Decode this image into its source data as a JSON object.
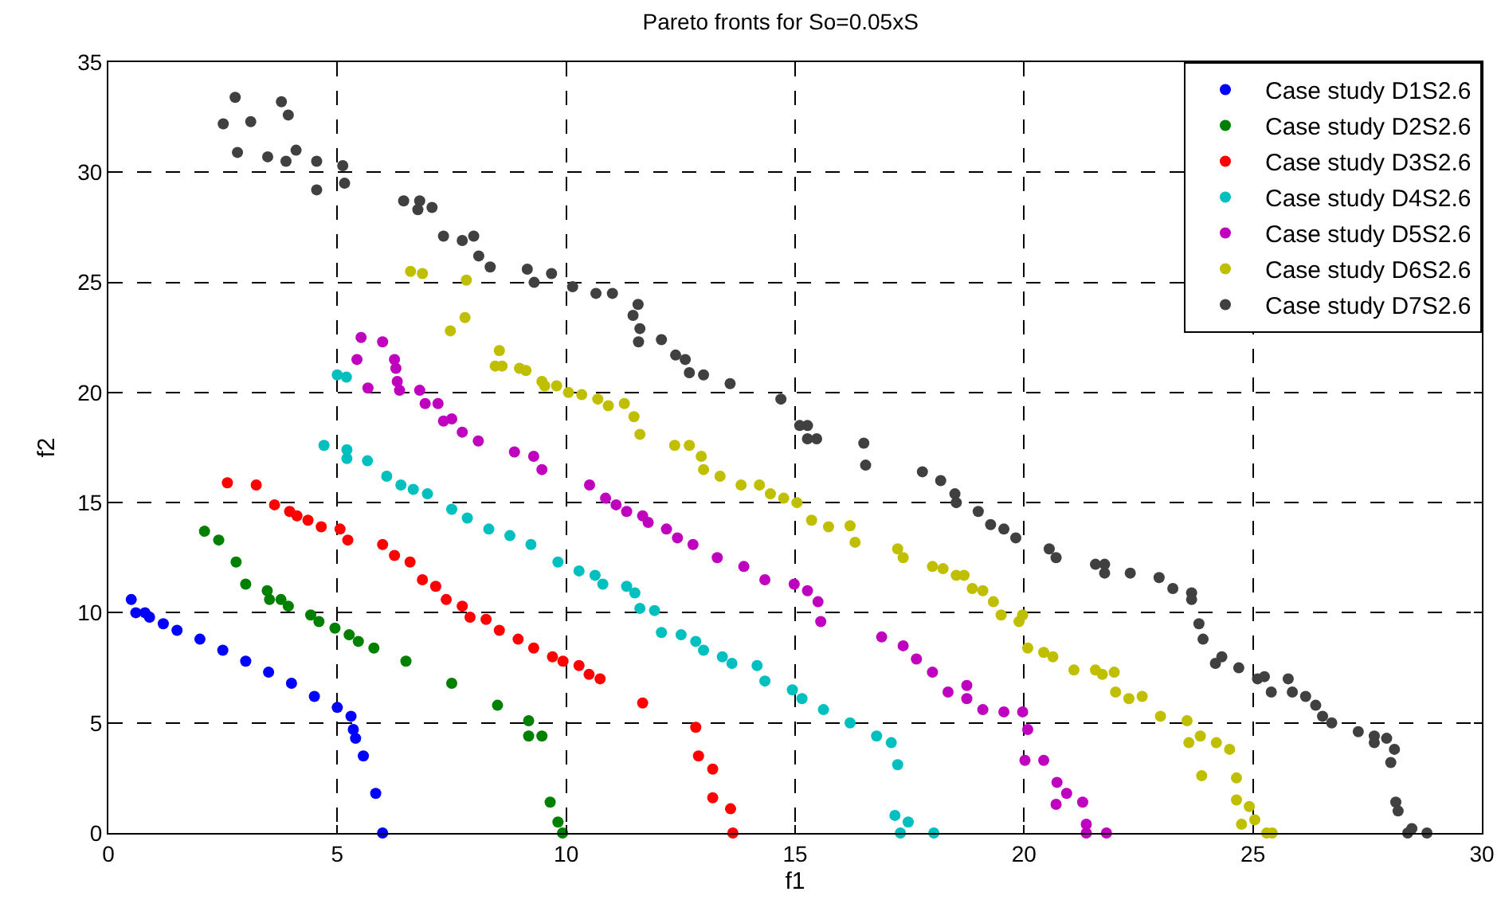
{
  "chart_data": {
    "type": "scatter",
    "title": "Pareto fronts for So=0.05xS",
    "xlabel": "f1",
    "ylabel": "f2",
    "xlim": [
      0,
      30
    ],
    "xticks": [
      0,
      5,
      10,
      15,
      20,
      25,
      30
    ],
    "ylim": [
      0,
      35
    ],
    "yticks": [
      0,
      5,
      10,
      15,
      20,
      25,
      30,
      35
    ],
    "grid": true,
    "legend": "top right",
    "marker": "circle",
    "series": [
      {
        "name": "Case study D1S2.6",
        "color": "#0000ff",
        "x": [
          0.5,
          0.6,
          0.8,
          0.9,
          1.2,
          1.5,
          2,
          2.5,
          3,
          3.5,
          4,
          4.5,
          5,
          5.3,
          5.35,
          5.4,
          5.57,
          5.84,
          5.99
        ],
        "values": [
          10.6,
          10.0,
          10.0,
          9.8,
          9.5,
          9.2,
          8.8,
          8.3,
          7.8,
          7.3,
          6.8,
          6.2,
          5.7,
          5.3,
          4.7,
          4.3,
          3.5,
          1.8,
          0
        ]
      },
      {
        "name": "Case study D2S2.6",
        "color": "#008000",
        "x": [
          2.1,
          2.41,
          2.79,
          3.0,
          3.47,
          3.52,
          3.77,
          3.93,
          4.42,
          4.6,
          4.95,
          5.26,
          5.46,
          5.8,
          6.5,
          7.5,
          8.5,
          9.18,
          9.18,
          9.47,
          9.65,
          9.82,
          9.92
        ],
        "values": [
          13.7,
          13.3,
          12.3,
          11.3,
          11.0,
          10.6,
          10.6,
          10.3,
          9.9,
          9.6,
          9.3,
          9.0,
          8.7,
          8.4,
          7.8,
          6.8,
          5.8,
          5.1,
          4.4,
          4.4,
          1.4,
          0.5,
          0
        ]
      },
      {
        "name": "Case study D3S2.6",
        "color": "#ff0000",
        "x": [
          2.6,
          3.23,
          3.63,
          3.96,
          4.12,
          4.36,
          4.65,
          5.06,
          5.23,
          5.99,
          6.25,
          6.59,
          6.86,
          7.15,
          7.38,
          7.73,
          7.9,
          8.25,
          8.54,
          8.95,
          9.29,
          9.7,
          9.93,
          10.28,
          10.5,
          10.74,
          11.67,
          12.83,
          12.89,
          13.2,
          13.2,
          13.59,
          13.64
        ],
        "values": [
          15.9,
          15.8,
          14.9,
          14.6,
          14.4,
          14.2,
          13.9,
          13.8,
          13.3,
          13.1,
          12.6,
          12.3,
          11.5,
          11.2,
          10.6,
          10.3,
          9.8,
          9.7,
          9.2,
          8.8,
          8.4,
          8.0,
          7.8,
          7.6,
          7.2,
          7.0,
          5.9,
          4.8,
          3.5,
          2.9,
          1.6,
          1.1,
          0
        ]
      },
      {
        "name": "Case study D4S2.6",
        "color": "#00bfbf",
        "x": [
          5.0,
          5.2,
          4.71,
          5.21,
          5.21,
          5.66,
          6.08,
          6.39,
          6.66,
          6.97,
          7.5,
          7.84,
          8.31,
          8.77,
          9.23,
          9.82,
          10.28,
          10.63,
          10.8,
          11.32,
          11.5,
          11.61,
          11.93,
          12.08,
          12.51,
          12.83,
          13.0,
          13.41,
          13.62,
          14.17,
          14.34,
          14.94,
          15.15,
          15.62,
          16.2,
          16.78,
          17.1,
          17.24,
          17.18,
          17.47,
          17.3,
          18.03
        ],
        "values": [
          20.8,
          20.7,
          17.6,
          17.4,
          17.0,
          16.9,
          16.2,
          15.8,
          15.6,
          15.4,
          14.7,
          14.3,
          13.8,
          13.5,
          13.1,
          12.3,
          11.9,
          11.7,
          11.3,
          11.2,
          10.9,
          10.2,
          10.1,
          9.1,
          9.0,
          8.7,
          8.3,
          8.0,
          7.7,
          7.6,
          6.9,
          6.5,
          6.1,
          5.6,
          5.0,
          4.4,
          4.1,
          3.1,
          0.8,
          0.5,
          0,
          0
        ]
      },
      {
        "name": "Case study D5S2.6",
        "color": "#bf00bf",
        "x": [
          5.52,
          5.99,
          5.43,
          6.25,
          6.28,
          5.67,
          6.31,
          6.36,
          6.8,
          6.92,
          7.2,
          7.32,
          7.5,
          7.73,
          8.08,
          8.87,
          9.29,
          9.47,
          10.51,
          10.86,
          11.09,
          11.32,
          11.67,
          11.79,
          12.19,
          12.43,
          12.77,
          13.3,
          13.88,
          14.34,
          14.98,
          15.27,
          15.5,
          15.56,
          16.89,
          17.36,
          17.65,
          18.0,
          18.34,
          18.75,
          18.75,
          19.1,
          19.56,
          19.97,
          20.08,
          20.02,
          20.43,
          20.72,
          20.7,
          20.93,
          21.28,
          21.36,
          21.36,
          21.8
        ],
        "values": [
          22.5,
          22.3,
          21.5,
          21.5,
          21.1,
          20.2,
          20.5,
          20.1,
          20.1,
          19.5,
          19.5,
          18.7,
          18.8,
          18.2,
          17.8,
          17.3,
          17.1,
          16.5,
          15.8,
          15.2,
          14.9,
          14.6,
          14.4,
          14.1,
          13.8,
          13.4,
          13.1,
          12.5,
          12.1,
          11.5,
          11.3,
          11.0,
          10.5,
          9.6,
          8.9,
          8.5,
          7.9,
          7.3,
          6.4,
          6.7,
          6.1,
          5.6,
          5.5,
          5.5,
          4.7,
          3.3,
          3.3,
          2.3,
          1.3,
          1.8,
          1.4,
          0.4,
          0,
          0
        ]
      },
      {
        "name": "Case study D6S2.6",
        "color": "#bfbf00",
        "x": [
          6.6,
          6.86,
          7.82,
          7.79,
          7.47,
          8.54,
          8.45,
          8.6,
          8.98,
          9.12,
          9.47,
          9.53,
          9.79,
          10.05,
          10.34,
          10.69,
          10.92,
          11.27,
          11.48,
          11.61,
          12.37,
          12.69,
          12.95,
          13.0,
          13.36,
          13.82,
          14.22,
          14.46,
          14.75,
          15.04,
          15.36,
          15.73,
          16.2,
          16.31,
          17.24,
          17.36,
          18.0,
          18.23,
          18.52,
          18.69,
          18.87,
          19.1,
          19.33,
          19.5,
          19.89,
          19.97,
          20.08,
          20.43,
          20.63,
          21.09,
          21.56,
          21.71,
          21.97,
          22.0,
          22.29,
          22.58,
          22.98,
          23.56,
          23.85,
          23.6,
          24.2,
          24.49,
          23.88,
          24.64,
          24.64,
          24.92,
          25.04,
          24.75,
          25.3,
          25.42
        ],
        "values": [
          25.5,
          25.4,
          25.1,
          23.4,
          22.8,
          21.9,
          21.2,
          21.2,
          21.1,
          21.0,
          20.5,
          20.3,
          20.3,
          20.0,
          19.9,
          19.7,
          19.4,
          19.5,
          18.9,
          18.1,
          17.6,
          17.6,
          17.1,
          16.5,
          16.2,
          15.8,
          15.8,
          15.4,
          15.2,
          15.0,
          14.2,
          13.9,
          13.95,
          13.2,
          12.9,
          12.5,
          12.1,
          12.0,
          11.7,
          11.7,
          11.1,
          11.0,
          10.5,
          9.9,
          9.6,
          9.9,
          8.4,
          8.2,
          8.0,
          7.4,
          7.4,
          7.2,
          7.3,
          6.4,
          6.1,
          6.2,
          5.3,
          5.1,
          4.4,
          4.1,
          4.1,
          3.8,
          2.6,
          2.5,
          1.5,
          1.2,
          0.6,
          0.4,
          0,
          0
        ]
      },
      {
        "name": "Case study D7S2.6",
        "color": "#404040",
        "x": [
          2.51,
          2.77,
          3.11,
          3.78,
          3.93,
          2.82,
          3.48,
          3.88,
          4.1,
          4.55,
          4.55,
          5.12,
          5.16,
          6.45,
          6.8,
          6.76,
          7.07,
          7.32,
          7.73,
          7.98,
          8.09,
          8.34,
          9.15,
          9.3,
          9.68,
          10.14,
          10.65,
          11.01,
          11.57,
          11.46,
          11.61,
          11.58,
          12.08,
          12.39,
          12.6,
          12.69,
          13.0,
          13.58,
          14.69,
          15.1,
          15.27,
          15.27,
          15.47,
          16.5,
          16.54,
          17.78,
          18.18,
          18.49,
          18.52,
          19.0,
          19.27,
          19.56,
          19.82,
          20.55,
          20.7,
          21.56,
          21.76,
          21.76,
          22.32,
          22.95,
          23.25,
          23.66,
          23.66,
          23.82,
          23.91,
          24.18,
          24.32,
          24.69,
          25.1,
          25.25,
          25.4,
          25.77,
          25.86,
          26.15,
          26.37,
          26.52,
          26.72,
          27.3,
          27.65,
          27.65,
          27.92,
          28.09,
          28.01,
          28.12,
          28.17,
          28.47,
          28.38,
          28.8
        ],
        "values": [
          32.2,
          33.4,
          32.3,
          33.2,
          32.6,
          30.9,
          30.7,
          30.5,
          31.0,
          30.5,
          29.2,
          30.3,
          29.5,
          28.7,
          28.7,
          28.3,
          28.4,
          27.1,
          26.9,
          27.1,
          26.2,
          25.7,
          25.6,
          25.0,
          25.4,
          24.8,
          24.5,
          24.5,
          24.0,
          23.5,
          22.9,
          22.3,
          22.4,
          21.7,
          21.5,
          20.9,
          20.8,
          20.4,
          19.7,
          18.5,
          18.5,
          17.9,
          17.9,
          17.7,
          16.7,
          16.4,
          16.0,
          15.4,
          15.0,
          14.6,
          14.0,
          13.8,
          13.4,
          12.9,
          12.5,
          12.2,
          12.2,
          11.8,
          11.8,
          11.6,
          11.1,
          10.9,
          10.6,
          9.5,
          8.8,
          7.7,
          8.0,
          7.5,
          7.0,
          7.1,
          6.4,
          7.0,
          6.4,
          6.2,
          5.8,
          5.3,
          5.0,
          4.6,
          4.4,
          4.1,
          4.3,
          3.8,
          3.2,
          1.4,
          1.0,
          0.2,
          0,
          0
        ]
      }
    ]
  }
}
